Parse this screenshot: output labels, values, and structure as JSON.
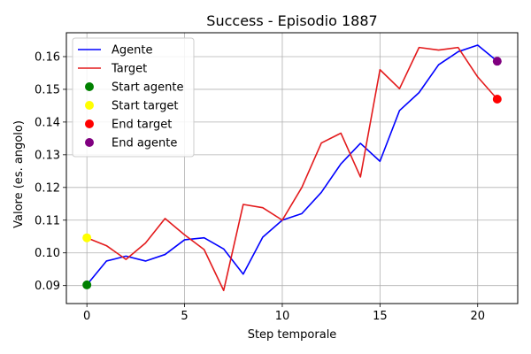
{
  "chart_data": {
    "type": "line",
    "title": "Success - Episodio 1887",
    "xlabel": "Step temporale",
    "ylabel": "Valore (es. angolo)",
    "xlim": [
      -1.05,
      22.05
    ],
    "ylim": [
      0.0845,
      0.1673
    ],
    "xticks": [
      0,
      5,
      10,
      15,
      20
    ],
    "yticks": [
      0.09,
      0.1,
      0.11,
      0.12,
      0.13,
      0.14,
      0.15,
      0.16
    ],
    "grid": true,
    "legend_position": "top-left",
    "x": [
      0,
      1,
      2,
      3,
      4,
      5,
      6,
      7,
      8,
      9,
      10,
      11,
      12,
      13,
      14,
      15,
      16,
      17,
      18,
      19,
      20,
      21
    ],
    "series": [
      {
        "name": "Agente",
        "color": "#0000ff",
        "values": [
          0.0902,
          0.0975,
          0.099,
          0.0975,
          0.0995,
          0.104,
          0.1046,
          0.1012,
          0.0935,
          0.1048,
          0.11,
          0.112,
          0.1185,
          0.1272,
          0.1335,
          0.128,
          0.1435,
          0.149,
          0.1575,
          0.1615,
          0.1635,
          0.1586
        ]
      },
      {
        "name": "Target",
        "color": "#e31a1c",
        "values": [
          0.1046,
          0.1022,
          0.098,
          0.103,
          0.1105,
          0.1055,
          0.101,
          0.0885,
          0.1148,
          0.1138,
          0.11,
          0.12,
          0.1336,
          0.1366,
          0.1232,
          0.156,
          0.1502,
          0.1628,
          0.162,
          0.1628,
          0.1538,
          0.147
        ]
      }
    ],
    "markers": [
      {
        "name": "Start agente",
        "color": "#008000",
        "x": 0,
        "y": 0.0902
      },
      {
        "name": "Start target",
        "color": "#ffff00",
        "x": 0,
        "y": 0.1046
      },
      {
        "name": "End target",
        "color": "#ff0000",
        "x": 21,
        "y": 0.147
      },
      {
        "name": "End agente",
        "color": "#800080",
        "x": 21,
        "y": 0.1586
      }
    ]
  }
}
